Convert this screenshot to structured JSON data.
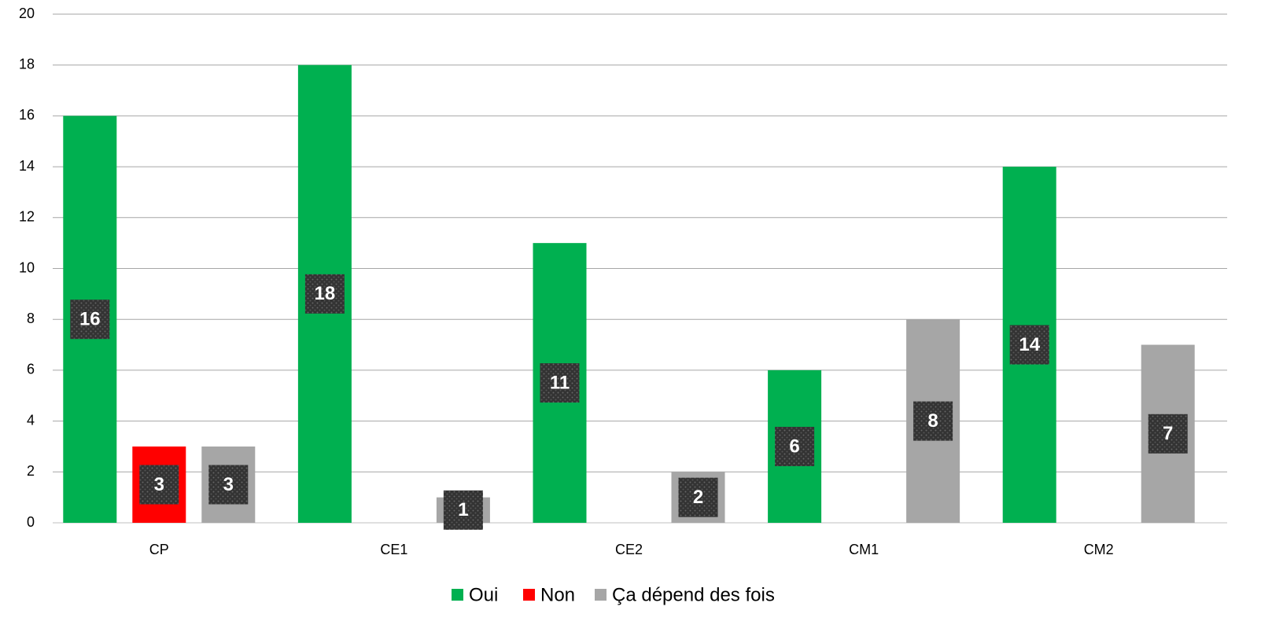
{
  "chart_data": {
    "type": "bar",
    "categories": [
      "CP",
      "CE1",
      "CE2",
      "CM1",
      "CM2"
    ],
    "series": [
      {
        "name": "Oui",
        "color": "#00b050",
        "values": [
          16,
          18,
          11,
          6,
          14
        ]
      },
      {
        "name": "Non",
        "color": "#ff0000",
        "values": [
          3,
          null,
          null,
          null,
          null
        ]
      },
      {
        "name": "Ça dépend des fois",
        "color": "#a6a6a6",
        "values": [
          3,
          1,
          2,
          8,
          7
        ]
      }
    ],
    "ylim": [
      0,
      20
    ],
    "yticks": [
      0,
      2,
      4,
      6,
      8,
      10,
      12,
      14,
      16,
      18,
      20
    ],
    "grid": true,
    "legend": "bottom"
  }
}
